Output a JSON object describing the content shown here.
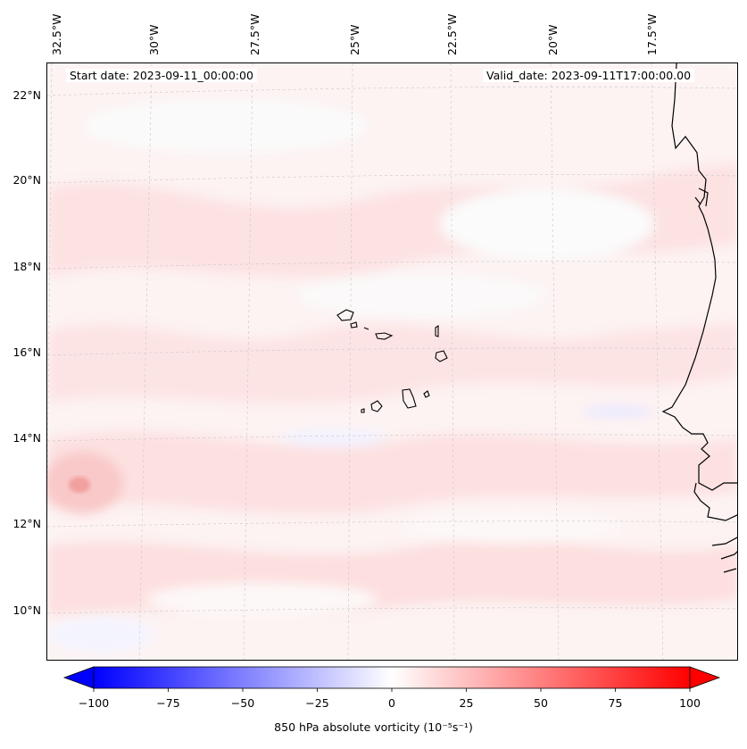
{
  "map": {
    "start_date": "Start date: 2023-09-11_00:00:00",
    "valid_date": "Valid_date: 2023-09-11T17:00:00.00",
    "lon_labels": [
      "32.5°W",
      "30°W",
      "27.5°W",
      "25°W",
      "22.5°W",
      "20°W",
      "17.5°W"
    ],
    "lat_labels": [
      "22°N",
      "20°N",
      "18°N",
      "16°N",
      "14°N",
      "12°N",
      "10°N"
    ],
    "field": "850 hPa absolute vorticity",
    "colormap": "bwr",
    "colors": {
      "min": "#0000ff",
      "mid": "#ffffff",
      "max": "#ff0000",
      "coast": "#000000"
    }
  },
  "colorbar": {
    "ticks": [
      "−100",
      "−75",
      "−50",
      "−25",
      "0",
      "25",
      "50",
      "75",
      "100"
    ],
    "label": "850 hPa absolute vorticity (10⁻⁵s⁻¹)",
    "range": [
      -100,
      100
    ],
    "extend": "both"
  }
}
